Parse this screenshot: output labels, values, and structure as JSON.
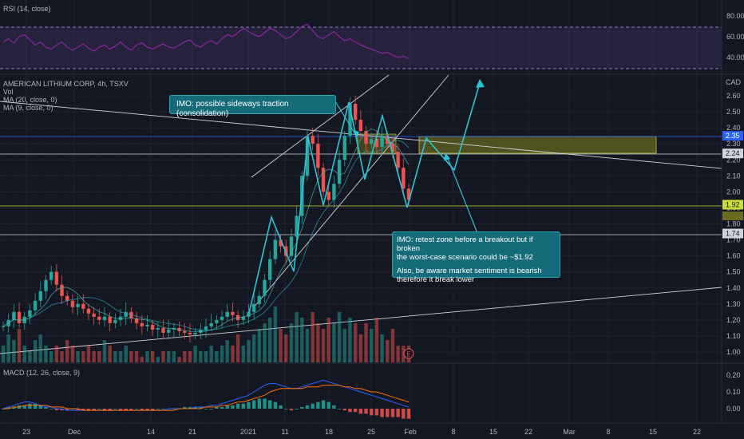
{
  "header": {
    "rsi_label": "RSI (14, close)",
    "symbol_label": "AMERICAN LITHIUM CORP, 4h, TSXV",
    "vol_label": "Vol",
    "ma20_label": "MA (20, close, 0)",
    "ma9_label": "MA (9, close, 0)",
    "macd_label": "MACD (12, 26, close, 9)",
    "currency": "CAD"
  },
  "annotations": {
    "callout1": "IMO: possible sideways traction (consolidation)",
    "callout2_line1": "IMO: retest zone before a breakout but if broken",
    "callout2_line2": "the worst-case scenario could be ~$1.92",
    "callout2_line3": "Also, be aware market sentiment is bearish",
    "callout2_line4": "therefore it break lower",
    "earnings_marker": "E"
  },
  "colors": {
    "background": "#131722",
    "up": "#26a69a",
    "down": "#ef5350",
    "annotation": "#2ec4d6",
    "zone": "#6b6b1f",
    "rsi_band": "#7e57c2",
    "macd_line": "#2962ff",
    "signal_line": "#ff6d00"
  },
  "chart_data": {
    "type": "candlestick",
    "price_axis": {
      "ticks": [
        "2.60",
        "2.50",
        "2.40",
        "2.30",
        "2.20",
        "2.10",
        "2.00",
        "1.90",
        "1.80",
        "1.70",
        "1.60",
        "1.50",
        "1.40",
        "1.30",
        "1.20",
        "1.10",
        "1.00"
      ],
      "ylim": [
        0.95,
        2.65
      ]
    },
    "price_labels": [
      {
        "label": "2.35",
        "value": 2.35,
        "color": "#2962ff"
      },
      {
        "label": "2.24",
        "value": 2.24,
        "color": "#787b86"
      },
      {
        "label": "1.92",
        "value": 1.92,
        "color": "#cddc39"
      },
      {
        "label": "1.74",
        "value": 1.74,
        "color": "#787b86"
      }
    ],
    "rsi_axis": {
      "ticks": [
        "80.00",
        "60.00",
        "40.00"
      ],
      "upper": 70,
      "lower": 30
    },
    "macd_axis": {
      "ticks": [
        "0.20",
        "0.10",
        "0.00"
      ]
    },
    "x_ticks": [
      "23",
      "Dec",
      "14",
      "21",
      "2021",
      "11",
      "18",
      "25",
      "Feb",
      "8",
      "15",
      "22",
      "Mar",
      "8",
      "15",
      "22"
    ],
    "close_path": [
      1.16,
      1.2,
      1.25,
      1.18,
      1.22,
      1.26,
      1.32,
      1.38,
      1.45,
      1.5,
      1.42,
      1.35,
      1.32,
      1.28,
      1.3,
      1.27,
      1.24,
      1.22,
      1.2,
      1.22,
      1.18,
      1.2,
      1.22,
      1.25,
      1.21,
      1.18,
      1.16,
      1.17,
      1.14,
      1.15,
      1.12,
      1.14,
      1.15,
      1.13,
      1.12,
      1.11,
      1.12,
      1.14,
      1.16,
      1.18,
      1.2,
      1.22,
      1.25,
      1.23,
      1.2,
      1.22,
      1.25,
      1.3,
      1.35,
      1.45,
      1.58,
      1.7,
      1.66,
      1.6,
      1.72,
      1.85,
      2.1,
      2.35,
      2.3,
      2.15,
      2.0,
      1.95,
      2.05,
      2.2,
      2.35,
      2.55,
      2.45,
      2.38,
      2.3,
      2.33,
      2.28,
      2.35,
      2.3,
      2.25,
      2.15,
      2.02,
      1.95
    ],
    "volume_path": [
      0.3,
      0.5,
      0.4,
      0.6,
      0.3,
      0.2,
      0.4,
      0.5,
      0.3,
      0.2,
      0.3,
      0.2,
      0.4,
      0.3,
      0.2,
      0.2,
      0.3,
      0.2,
      0.2,
      0.4,
      0.3,
      0.2,
      0.2,
      0.3,
      0.2,
      0.2,
      0.1,
      0.2,
      0.2,
      0.1,
      0.2,
      0.2,
      0.2,
      0.1,
      0.2,
      0.2,
      0.3,
      0.2,
      0.2,
      0.3,
      0.2,
      0.3,
      0.4,
      0.3,
      0.5,
      0.3,
      0.4,
      0.5,
      0.6,
      0.7,
      0.8,
      1.0,
      0.6,
      0.5,
      0.7,
      0.9,
      0.8,
      0.6,
      0.9,
      0.7,
      0.6,
      0.8,
      0.7,
      0.9,
      0.6,
      0.8,
      0.7,
      0.5,
      0.7,
      0.6,
      0.8,
      0.5,
      0.4,
      0.6,
      0.3,
      0.3,
      0.3
    ],
    "macd_hist": [
      0.0,
      0.01,
      0.01,
      0.02,
      0.02,
      0.03,
      0.03,
      0.02,
      0.01,
      0.0,
      -0.01,
      -0.01,
      -0.01,
      0.0,
      -0.01,
      -0.01,
      -0.01,
      -0.01,
      0.0,
      -0.01,
      -0.01,
      0.0,
      -0.01,
      -0.01,
      -0.01,
      0.0,
      -0.01,
      -0.01,
      -0.01,
      0.0,
      0.0,
      0.0,
      0.0,
      0.0,
      0.01,
      0.01,
      0.01,
      0.01,
      0.0,
      0.0,
      0.01,
      0.01,
      0.02,
      0.02,
      0.03,
      0.03,
      0.04,
      0.05,
      0.06,
      0.06,
      0.05,
      0.04,
      0.02,
      0.0,
      -0.01,
      0.0,
      0.01,
      0.02,
      0.03,
      0.04,
      0.05,
      0.04,
      0.02,
      0.0,
      -0.01,
      -0.02,
      -0.02,
      -0.03,
      -0.03,
      -0.04,
      -0.04,
      -0.05,
      -0.05,
      -0.05,
      -0.05,
      -0.06,
      -0.06
    ],
    "macd_line": [
      0.0,
      0.01,
      0.02,
      0.03,
      0.04,
      0.04,
      0.03,
      0.02,
      0.01,
      0.01,
      0.0,
      0.0,
      -0.01,
      -0.01,
      -0.01,
      -0.01,
      -0.01,
      -0.01,
      -0.01,
      -0.01,
      -0.01,
      -0.01,
      -0.01,
      -0.01,
      -0.01,
      -0.01,
      -0.01,
      -0.01,
      -0.01,
      -0.01,
      -0.01,
      0.0,
      0.0,
      0.0,
      0.0,
      0.0,
      0.01,
      0.01,
      0.01,
      0.02,
      0.02,
      0.03,
      0.04,
      0.05,
      0.06,
      0.07,
      0.08,
      0.1,
      0.12,
      0.14,
      0.15,
      0.15,
      0.14,
      0.13,
      0.12,
      0.12,
      0.13,
      0.14,
      0.15,
      0.16,
      0.17,
      0.16,
      0.15,
      0.14,
      0.13,
      0.12,
      0.11,
      0.1,
      0.09,
      0.08,
      0.07,
      0.06,
      0.05,
      0.04,
      0.03,
      0.02,
      0.01
    ],
    "signal_line": [
      0.0,
      0.0,
      0.01,
      0.01,
      0.02,
      0.02,
      0.02,
      0.02,
      0.02,
      0.01,
      0.01,
      0.01,
      0.0,
      0.0,
      0.0,
      -0.01,
      -0.01,
      -0.01,
      -0.01,
      -0.01,
      -0.01,
      -0.01,
      -0.01,
      -0.01,
      -0.01,
      -0.01,
      -0.01,
      -0.01,
      -0.01,
      -0.01,
      -0.01,
      -0.01,
      -0.01,
      0.0,
      0.0,
      0.0,
      0.0,
      0.0,
      0.01,
      0.01,
      0.01,
      0.02,
      0.02,
      0.03,
      0.04,
      0.04,
      0.05,
      0.06,
      0.07,
      0.08,
      0.1,
      0.11,
      0.12,
      0.12,
      0.12,
      0.12,
      0.12,
      0.13,
      0.13,
      0.13,
      0.14,
      0.14,
      0.14,
      0.14,
      0.13,
      0.13,
      0.12,
      0.12,
      0.11,
      0.1,
      0.1,
      0.09,
      0.08,
      0.07,
      0.06,
      0.05,
      0.04
    ],
    "rsi_path": [
      55,
      58,
      54,
      60,
      62,
      57,
      52,
      55,
      50,
      48,
      52,
      55,
      50,
      47,
      50,
      53,
      49,
      46,
      50,
      52,
      48,
      51,
      55,
      50,
      47,
      52,
      54,
      50,
      48,
      51,
      53,
      50,
      49,
      52,
      55,
      57,
      52,
      50,
      54,
      56,
      53,
      58,
      62,
      60,
      64,
      68,
      65,
      62,
      60,
      64,
      68,
      66,
      62,
      58,
      60,
      65,
      70,
      72,
      66,
      60,
      58,
      62,
      65,
      60,
      56,
      58,
      55,
      52,
      50,
      48,
      46,
      44,
      45,
      42,
      40,
      41,
      39
    ],
    "projection_path": [
      2.35,
      2.24,
      2.55
    ]
  }
}
